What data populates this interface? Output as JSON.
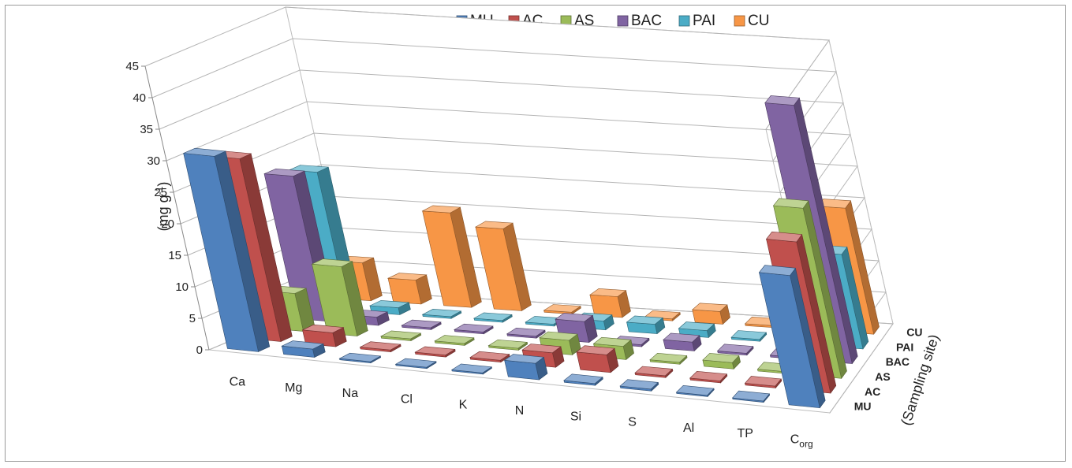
{
  "chart_data": {
    "type": "bar",
    "variant": "3d-column",
    "title": "",
    "ylabel": "(mg g⁻¹)",
    "ylabel_base": "(mg g",
    "ylabel_sup": "-1",
    "ylabel_close": ")",
    "zlabel": "(Sampling site)",
    "ylim": [
      0,
      45
    ],
    "yticks": [
      0,
      5,
      10,
      15,
      20,
      25,
      30,
      35,
      40,
      45
    ],
    "grid": true,
    "legend_position": "top",
    "categories": [
      "Ca",
      "Mg",
      "Na",
      "Cl",
      "K",
      "N",
      "Si",
      "S",
      "Al",
      "TP",
      "Corg"
    ],
    "category_labels": [
      {
        "base": "Ca",
        "sub": ""
      },
      {
        "base": "Mg",
        "sub": ""
      },
      {
        "base": "Na",
        "sub": ""
      },
      {
        "base": "Cl",
        "sub": ""
      },
      {
        "base": "K",
        "sub": ""
      },
      {
        "base": "N",
        "sub": ""
      },
      {
        "base": "Si",
        "sub": ""
      },
      {
        "base": "S",
        "sub": ""
      },
      {
        "base": "Al",
        "sub": ""
      },
      {
        "base": "TP",
        "sub": ""
      },
      {
        "base": "C",
        "sub": "org"
      }
    ],
    "series": [
      {
        "name": "MU",
        "color": "#4F81BD",
        "values": [
          31,
          1.3,
          0.2,
          0.2,
          0.2,
          2.6,
          0.3,
          0.3,
          0.2,
          0.2,
          21
        ]
      },
      {
        "name": "AC",
        "color": "#C0504D",
        "values": [
          29,
          2.2,
          0.3,
          0.3,
          0.3,
          2.3,
          2.8,
          0.3,
          0.3,
          0.3,
          24
        ]
      },
      {
        "name": "AS",
        "color": "#9BBB59",
        "values": [
          6,
          11,
          0.3,
          0.3,
          0.3,
          2.3,
          2.1,
          0.3,
          1,
          0.3,
          27
        ]
      },
      {
        "name": "BAC",
        "color": "#8064A2",
        "values": [
          23,
          1.3,
          0.3,
          0.3,
          0.3,
          3.3,
          0.3,
          1.4,
          0.3,
          0.3,
          41
        ]
      },
      {
        "name": "PAI",
        "color": "#4BACC6",
        "values": [
          22,
          1.1,
          0.3,
          0.3,
          0.3,
          1.4,
          1.5,
          1.1,
          0.3,
          0.3,
          15
        ]
      },
      {
        "name": "CU",
        "color": "#F79646",
        "values": [
          6,
          3.8,
          15,
          13,
          0.3,
          3.3,
          0.3,
          2,
          0.3,
          0.3,
          20
        ]
      }
    ]
  }
}
